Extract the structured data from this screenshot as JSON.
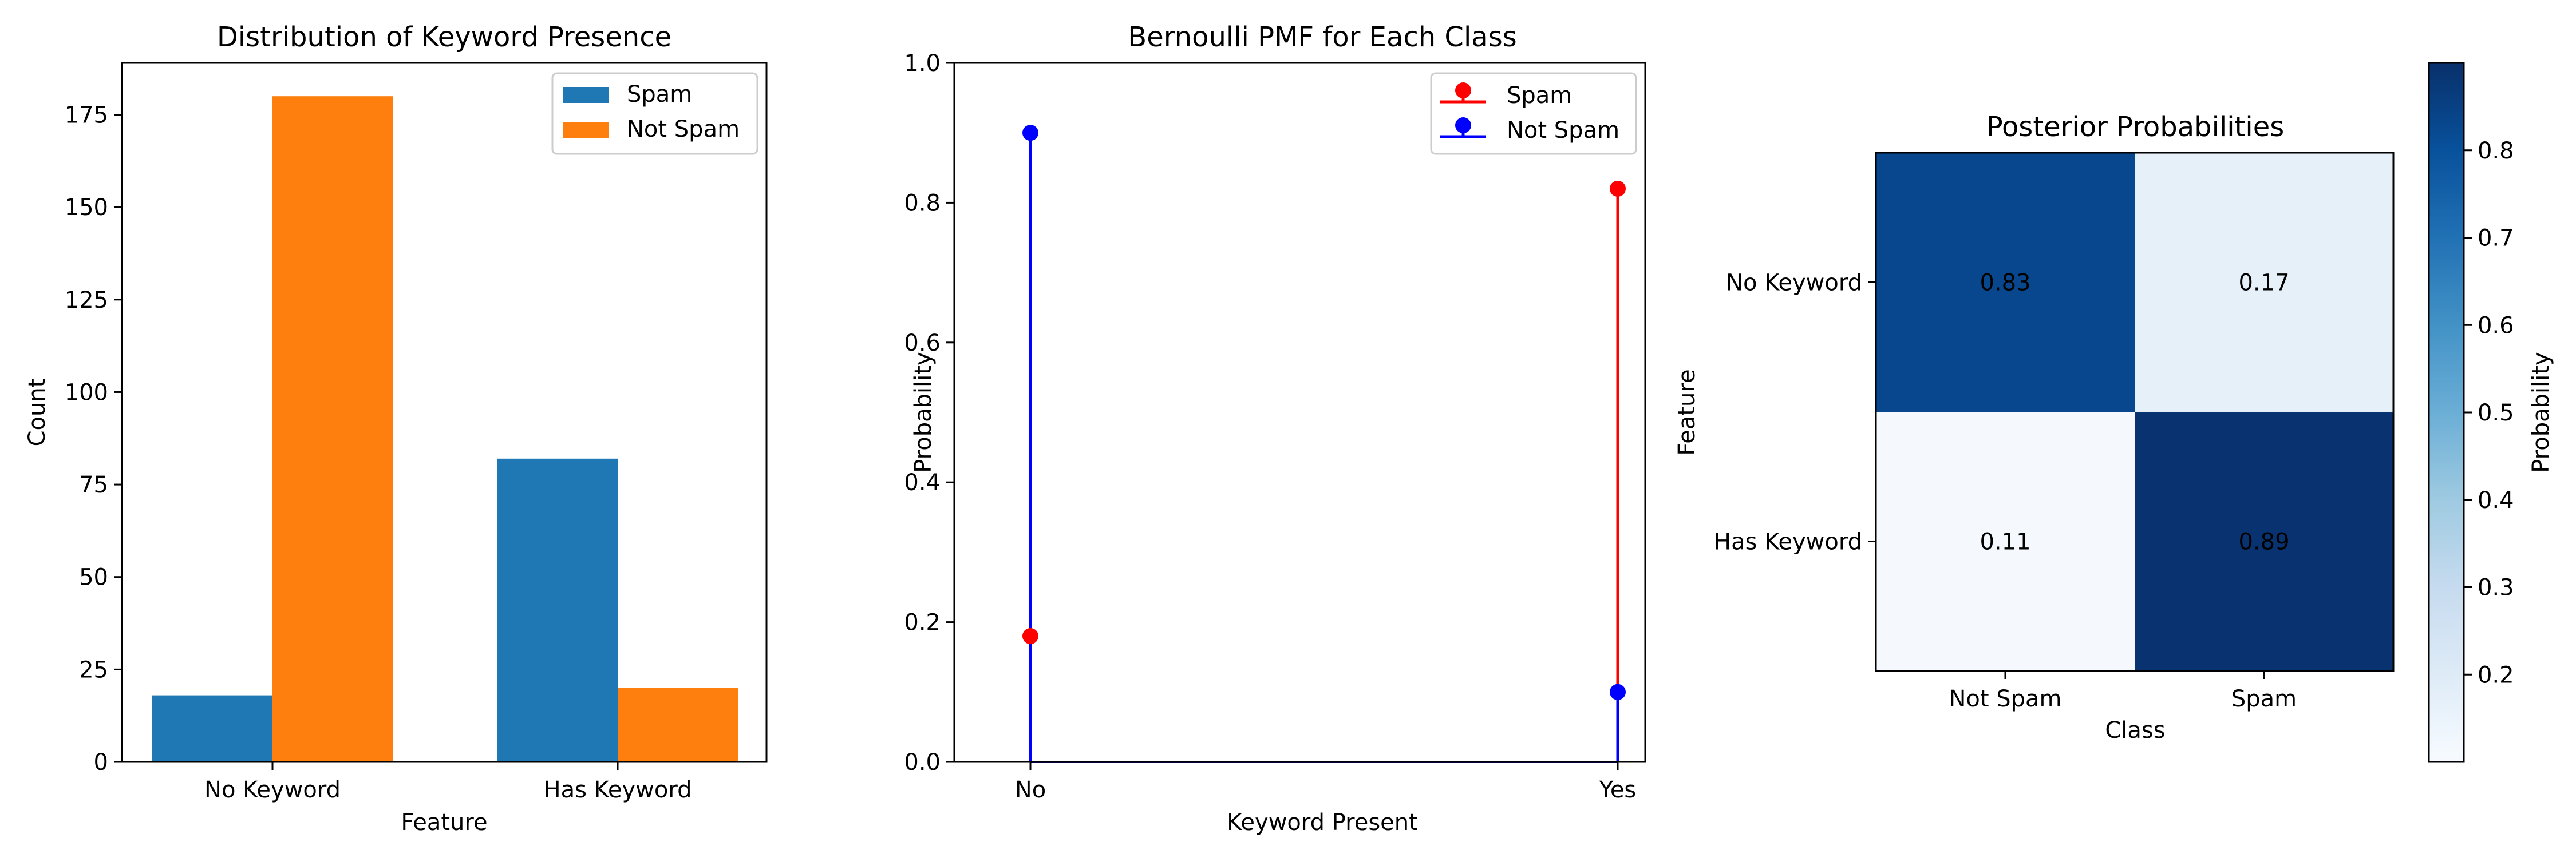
{
  "colors": {
    "spam_bar": "#1f77b4",
    "not_spam_bar": "#ff7f0e",
    "spam_stem": "#ff0000",
    "not_spam_stem": "#0000ff",
    "colormap": [
      "#f7fbff",
      "#deebf7",
      "#c6dbef",
      "#9ecae1",
      "#6baed6",
      "#4292c6",
      "#2171b5",
      "#08519c",
      "#08306b"
    ]
  },
  "chart_data": [
    {
      "type": "bar",
      "title": "Distribution of Keyword Presence",
      "xlabel": "Feature",
      "ylabel": "Count",
      "categories": [
        "No Keyword",
        "Has Keyword"
      ],
      "series": [
        {
          "name": "Spam",
          "values": [
            18,
            82
          ]
        },
        {
          "name": "Not Spam",
          "values": [
            180,
            20
          ]
        }
      ],
      "ylim": [
        0,
        189
      ],
      "yticks": [
        0,
        25,
        50,
        75,
        100,
        125,
        150,
        175
      ],
      "legend": "top-right",
      "grid": false
    },
    {
      "type": "line",
      "subtype": "stem",
      "title": "Bernoulli PMF for Each Class",
      "xlabel": "Keyword Present",
      "ylabel": "Probability",
      "x": [
        "No",
        "Yes"
      ],
      "series": [
        {
          "name": "Spam",
          "values": [
            0.18,
            0.82
          ]
        },
        {
          "name": "Not Spam",
          "values": [
            0.9,
            0.1
          ]
        }
      ],
      "ylim": [
        0,
        1.0
      ],
      "yticks": [
        "0.0",
        "0.2",
        "0.4",
        "0.6",
        "0.8",
        "1.0"
      ],
      "legend": "top-right",
      "grid": false
    },
    {
      "type": "heatmap",
      "title": "Posterior Probabilities",
      "xlabel": "Class",
      "ylabel": "Feature",
      "x_categories": [
        "Not Spam",
        "Spam"
      ],
      "y_categories": [
        "No Keyword",
        "Has Keyword"
      ],
      "values": [
        [
          0.83,
          0.17
        ],
        [
          0.11,
          0.89
        ]
      ],
      "cell_labels": [
        [
          "0.83",
          "0.17"
        ],
        [
          "0.11",
          "0.89"
        ]
      ],
      "colorbar": {
        "label": "Probability",
        "range": [
          0.1,
          0.9
        ],
        "ticks": [
          "0.2",
          "0.3",
          "0.4",
          "0.5",
          "0.6",
          "0.7",
          "0.8"
        ]
      }
    }
  ]
}
